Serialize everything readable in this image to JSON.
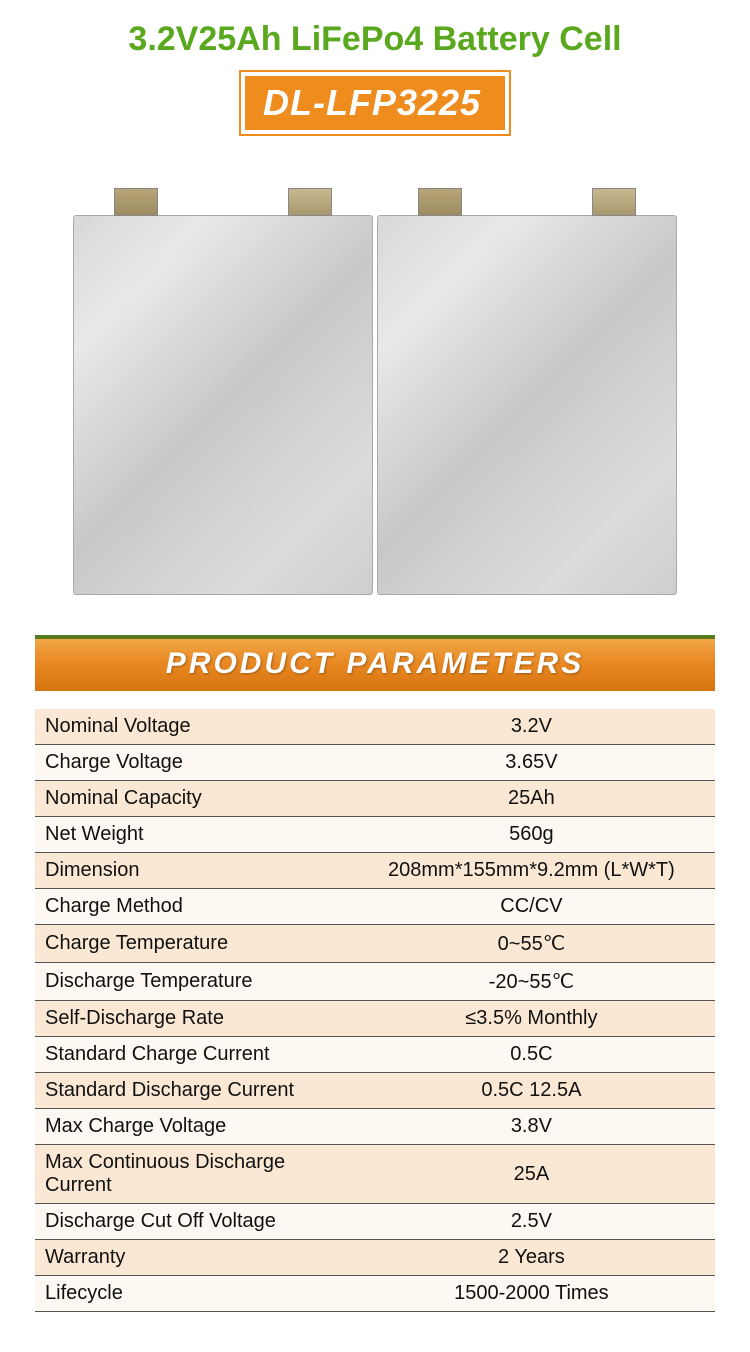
{
  "header": {
    "title": "3.2V25Ah LiFePo4 Battery Cell",
    "title_color": "#5aa81e",
    "model": "DL-LFP3225",
    "model_bg": "#ee8c1e",
    "model_fg": "#ffffff"
  },
  "section": {
    "label": "PRODUCT  PARAMETERS",
    "bg_gradient_top": "#f0a646",
    "bg_gradient_bottom": "#d67410",
    "accent_border": "#5a7a1e",
    "text_color": "#ffffff"
  },
  "table": {
    "row_bg_even": "#fae8d4",
    "row_bg_odd": "#fdf8f2",
    "border_color": "#555555",
    "font_size": 20,
    "rows": [
      {
        "label": "Nominal Voltage",
        "value": "3.2V"
      },
      {
        "label": "Charge Voltage",
        "value": "3.65V"
      },
      {
        "label": "Nominal Capacity",
        "value": "25Ah"
      },
      {
        "label": "Net Weight",
        "value": "560g"
      },
      {
        "label": "Dimension",
        "value": "208mm*155mm*9.2mm (L*W*T)"
      },
      {
        "label": "Charge Method",
        "value": "CC/CV"
      },
      {
        "label": "Charge Temperature",
        "value": "0~55℃"
      },
      {
        "label": "Discharge Temperature",
        "value": "-20~55℃"
      },
      {
        "label": "Self-Discharge Rate",
        "value": "≤3.5% Monthly"
      },
      {
        "label": "Standard Charge Current",
        "value": "0.5C"
      },
      {
        "label": "Standard Discharge Current",
        "value": "0.5C 12.5A"
      },
      {
        "label": "Max Charge Voltage",
        "value": "3.8V"
      },
      {
        "label": "Max Continuous Discharge Current",
        "value": "25A"
      },
      {
        "label": "Discharge Cut Off Voltage",
        "value": "2.5V"
      },
      {
        "label": "Warranty",
        "value": "2 Years"
      },
      {
        "label": "Lifecycle",
        "value": "1500-2000 Times"
      }
    ]
  }
}
